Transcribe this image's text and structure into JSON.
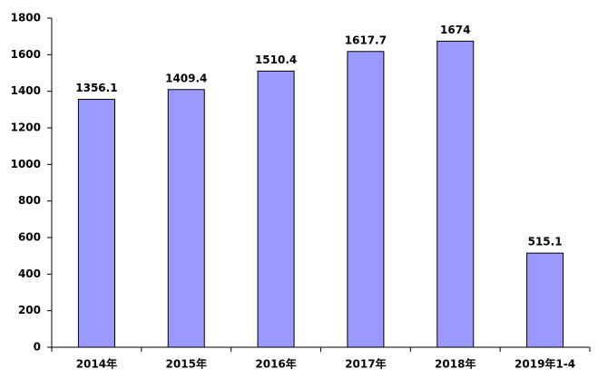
{
  "chart_data": {
    "type": "bar",
    "categories": [
      "2014年",
      "2015年",
      "2016年",
      "2017年",
      "2018年",
      "2019年1-4"
    ],
    "values": [
      1356.1,
      1409.4,
      1510.4,
      1617.7,
      1674,
      515.1
    ],
    "color": "#9999ff",
    "ylim": [
      0,
      1800
    ],
    "yticks": [
      0,
      200,
      400,
      600,
      800,
      1000,
      1200,
      1400,
      1600,
      1800
    ],
    "grid": false
  }
}
